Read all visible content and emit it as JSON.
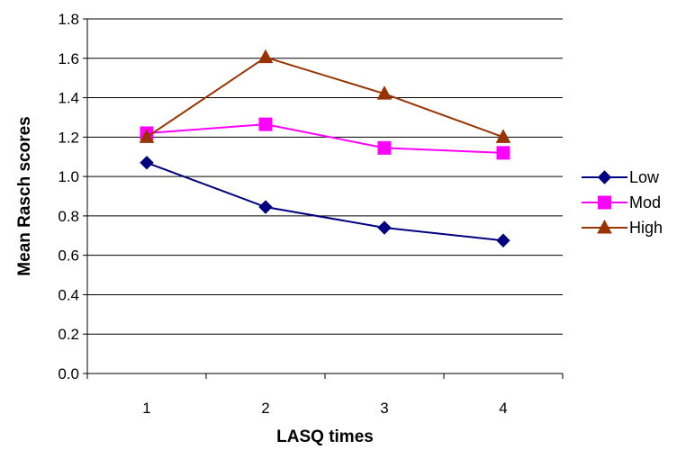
{
  "chart_data": {
    "type": "line",
    "x": [
      1,
      2,
      3,
      4
    ],
    "x_tick_labels": [
      "1",
      "2",
      "3",
      "4"
    ],
    "xlabel": "LASQ times",
    "ylabel": "Mean Rasch scores",
    "ylim": [
      0.0,
      1.8
    ],
    "y_ticks": [
      0.0,
      0.2,
      0.4,
      0.6,
      0.8,
      1.0,
      1.2,
      1.4,
      1.6,
      1.8
    ],
    "y_tick_labels": [
      "0.0",
      "0.2",
      "0.4",
      "0.6",
      "0.8",
      "1.0",
      "1.2",
      "1.4",
      "1.6",
      "1.8"
    ],
    "grid": "horizontal",
    "legend_position": "right",
    "series": [
      {
        "name": "Low",
        "values": [
          1.07,
          0.845,
          0.74,
          0.675
        ],
        "color": "#000080",
        "marker": "diamond"
      },
      {
        "name": "Mod",
        "values": [
          1.22,
          1.265,
          1.145,
          1.12
        ],
        "color": "#FF00FF",
        "marker": "square"
      },
      {
        "name": "High",
        "values": [
          1.2,
          1.605,
          1.42,
          1.2
        ],
        "color": "#993300",
        "marker": "triangle"
      }
    ]
  }
}
